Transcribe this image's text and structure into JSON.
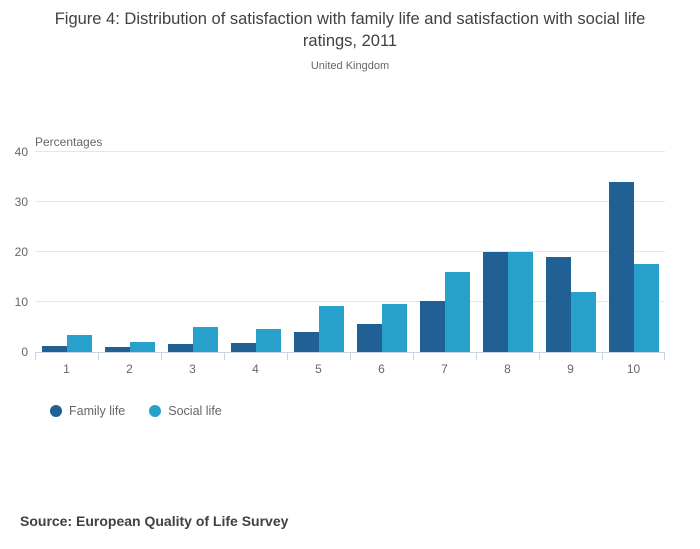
{
  "header": {
    "title": "Figure 4: Distribution of satisfaction with family life and satisfaction with social life ratings, 2011",
    "subtitle": "United Kingdom"
  },
  "chart_data": {
    "type": "bar",
    "title": "Figure 4: Distribution of satisfaction with family life and satisfaction with social life ratings, 2011",
    "subtitle": "United Kingdom",
    "ylabel": "Percentages",
    "xlabel": "",
    "categories": [
      "1",
      "2",
      "3",
      "4",
      "5",
      "6",
      "7",
      "8",
      "9",
      "10"
    ],
    "series": [
      {
        "name": "Family life",
        "color": "#206095",
        "values": [
          1.3,
          1.0,
          1.7,
          1.9,
          4.1,
          5.6,
          10.2,
          20.1,
          19.1,
          34.1
        ]
      },
      {
        "name": "Social life",
        "color": "#27a0cc",
        "values": [
          3.5,
          2.0,
          5.0,
          4.7,
          9.2,
          9.7,
          16.0,
          20.1,
          12.0,
          17.6
        ]
      }
    ],
    "ylim": [
      0,
      40
    ],
    "yticks": [
      0,
      10,
      20,
      30,
      40
    ],
    "grid": true,
    "legend_position": "bottom-left"
  },
  "source": "Source: European Quality of Life Survey",
  "colors": {
    "family_life": "#206095",
    "social_life": "#27a0cc",
    "axis_line": "#c9d4e3",
    "gridline": "#e6e6e6",
    "title_text": "#414042",
    "muted_text": "#666666"
  }
}
